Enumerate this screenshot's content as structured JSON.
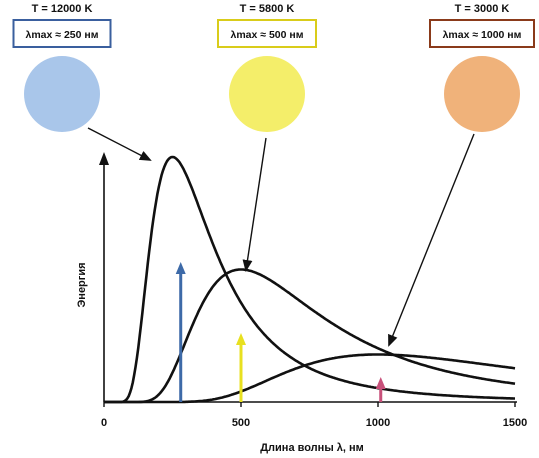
{
  "chart_data": {
    "type": "line",
    "xlabel": "Длина волны λ, нм",
    "ylabel": "Энергия",
    "xlim": [
      0,
      1500
    ],
    "ylim": [
      0,
      1.0
    ],
    "x_ticks": [
      "0",
      "500",
      "1000",
      "1500"
    ],
    "series": [
      {
        "temp_label": "T = 12000 K",
        "peak_label": "λmax ≈ 250 нм",
        "temperature_K": 12000,
        "peak_nm": 250,
        "peak_value": 0.98,
        "box_color": "#3a5f9e",
        "star_color": "#a9c6ea",
        "arrow_color": "#3d6aa8"
      },
      {
        "temp_label": "T = 5800 K",
        "peak_label": "λmax ≈ 500 нм",
        "temperature_K": 5800,
        "peak_nm": 500,
        "peak_value": 0.53,
        "box_color": "#d9cc1a",
        "star_color": "#f4ee6a",
        "arrow_color": "#e8e020"
      },
      {
        "temp_label": "T = 3000 K",
        "peak_label": "λmax ≈ 1000 нм",
        "temperature_K": 3000,
        "peak_nm": 1000,
        "peak_value": 0.19,
        "box_color": "#8a3a1a",
        "star_color": "#f0b27a",
        "arrow_color": "#c8507a"
      }
    ]
  }
}
